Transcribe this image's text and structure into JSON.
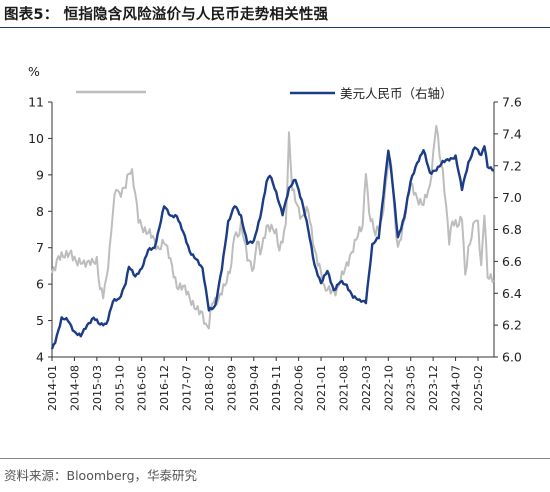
{
  "figure": {
    "title": "图表5：  恒指隐含风险溢价与人民币走势相关性强",
    "source": "资料来源：Bloomberg，华泰研究"
  },
  "chart_data": {
    "type": "line",
    "left_axis": {
      "unit_label": "%",
      "range": [
        4,
        11
      ],
      "ticks": [
        "4",
        "5",
        "6",
        "7",
        "8",
        "9",
        "10",
        "11"
      ]
    },
    "right_axis": {
      "range": [
        6.0,
        7.6
      ],
      "ticks": [
        "6.0",
        "6.2",
        "6.4",
        "6.6",
        "6.8",
        "7.0",
        "7.2",
        "7.4",
        "7.6"
      ]
    },
    "x_range": [
      "2014-01",
      "2025-07"
    ],
    "x_ticks": [
      "2014-01",
      "2014-08",
      "2015-03",
      "2015-10",
      "2016-05",
      "2016-12",
      "2017-07",
      "2018-02",
      "2018-09",
      "2019-04",
      "2019-11",
      "2020-06",
      "2021-01",
      "2021-08",
      "2022-03",
      "2022-10",
      "2023-05",
      "2023-12",
      "2024-07",
      "2025-02"
    ],
    "grid": false,
    "legend_position": "top",
    "series": [
      {
        "name": "",
        "axis": "left",
        "color": "#bdbdbd",
        "points": [
          [
            "2014-01",
            6.3
          ],
          [
            "2014-03",
            6.8
          ],
          [
            "2014-05",
            6.7
          ],
          [
            "2014-07",
            6.9
          ],
          [
            "2014-09",
            6.6
          ],
          [
            "2014-11",
            6.5
          ],
          [
            "2015-01",
            6.7
          ],
          [
            "2015-03",
            6.6
          ],
          [
            "2015-04",
            5.8
          ],
          [
            "2015-05",
            5.7
          ],
          [
            "2015-06",
            6.2
          ],
          [
            "2015-07",
            7.0
          ],
          [
            "2015-08",
            8.0
          ],
          [
            "2015-09",
            8.6
          ],
          [
            "2015-10",
            8.4
          ],
          [
            "2015-12",
            8.8
          ],
          [
            "2016-01",
            9.1
          ],
          [
            "2016-02",
            9.0
          ],
          [
            "2016-04",
            7.8
          ],
          [
            "2016-06",
            7.5
          ],
          [
            "2016-08",
            7.3
          ],
          [
            "2016-10",
            7.0
          ],
          [
            "2016-12",
            7.2
          ],
          [
            "2017-02",
            6.6
          ],
          [
            "2017-04",
            6.0
          ],
          [
            "2017-06",
            5.9
          ],
          [
            "2017-08",
            5.6
          ],
          [
            "2017-10",
            5.4
          ],
          [
            "2017-12",
            5.1
          ],
          [
            "2018-01",
            4.8
          ],
          [
            "2018-02",
            4.9
          ],
          [
            "2018-03",
            5.6
          ],
          [
            "2018-05",
            5.5
          ],
          [
            "2018-07",
            6.0
          ],
          [
            "2018-09",
            6.6
          ],
          [
            "2018-10",
            7.4
          ],
          [
            "2018-11",
            7.2
          ],
          [
            "2018-12",
            7.6
          ],
          [
            "2019-01",
            7.3
          ],
          [
            "2019-02",
            6.8
          ],
          [
            "2019-04",
            6.3
          ],
          [
            "2019-05",
            7.2
          ],
          [
            "2019-06",
            6.9
          ],
          [
            "2019-08",
            7.6
          ],
          [
            "2019-09",
            7.5
          ],
          [
            "2019-11",
            7.4
          ],
          [
            "2019-12",
            7.0
          ],
          [
            "2020-01",
            7.3
          ],
          [
            "2020-02",
            7.6
          ],
          [
            "2020-03",
            10.0
          ],
          [
            "2020-04",
            8.6
          ],
          [
            "2020-05",
            8.4
          ],
          [
            "2020-07",
            7.8
          ],
          [
            "2020-09",
            8.0
          ],
          [
            "2020-11",
            7.0
          ],
          [
            "2021-01",
            6.3
          ],
          [
            "2021-02",
            5.8
          ],
          [
            "2021-04",
            5.9
          ],
          [
            "2021-06",
            5.8
          ],
          [
            "2021-08",
            6.3
          ],
          [
            "2021-10",
            6.8
          ],
          [
            "2021-12",
            7.2
          ],
          [
            "2022-02",
            7.6
          ],
          [
            "2022-03",
            9.2
          ],
          [
            "2022-04",
            8.0
          ],
          [
            "2022-06",
            7.3
          ],
          [
            "2022-08",
            7.8
          ],
          [
            "2022-10",
            9.4
          ],
          [
            "2022-11",
            9.2
          ],
          [
            "2022-12",
            7.8
          ],
          [
            "2023-01",
            7.0
          ],
          [
            "2023-03",
            7.8
          ],
          [
            "2023-05",
            8.7
          ],
          [
            "2023-07",
            8.4
          ],
          [
            "2023-09",
            8.2
          ],
          [
            "2023-11",
            8.6
          ],
          [
            "2024-01",
            10.5
          ],
          [
            "2024-02",
            9.6
          ],
          [
            "2024-03",
            9.0
          ],
          [
            "2024-05",
            7.2
          ],
          [
            "2024-06",
            7.8
          ],
          [
            "2024-08",
            7.6
          ],
          [
            "2024-09",
            7.8
          ],
          [
            "2024-10",
            6.2
          ],
          [
            "2024-11",
            7.0
          ],
          [
            "2025-01",
            7.8
          ],
          [
            "2025-02",
            7.6
          ],
          [
            "2025-03",
            6.4
          ],
          [
            "2025-04",
            8.0
          ],
          [
            "2025-05",
            6.3
          ],
          [
            "2025-07",
            6.1
          ]
        ]
      },
      {
        "name": "美元人民币（右轴）",
        "axis": "right",
        "color": "#1b3c87",
        "points": [
          [
            "2014-01",
            6.05
          ],
          [
            "2014-02",
            6.1
          ],
          [
            "2014-04",
            6.24
          ],
          [
            "2014-06",
            6.23
          ],
          [
            "2014-08",
            6.16
          ],
          [
            "2014-10",
            6.13
          ],
          [
            "2014-12",
            6.2
          ],
          [
            "2015-02",
            6.25
          ],
          [
            "2015-04",
            6.2
          ],
          [
            "2015-06",
            6.21
          ],
          [
            "2015-08",
            6.35
          ],
          [
            "2015-10",
            6.36
          ],
          [
            "2015-12",
            6.47
          ],
          [
            "2016-01",
            6.57
          ],
          [
            "2016-03",
            6.5
          ],
          [
            "2016-05",
            6.56
          ],
          [
            "2016-07",
            6.67
          ],
          [
            "2016-09",
            6.68
          ],
          [
            "2016-11",
            6.86
          ],
          [
            "2016-12",
            6.95
          ],
          [
            "2017-02",
            6.88
          ],
          [
            "2017-04",
            6.89
          ],
          [
            "2017-06",
            6.78
          ],
          [
            "2017-08",
            6.66
          ],
          [
            "2017-10",
            6.62
          ],
          [
            "2017-12",
            6.55
          ],
          [
            "2018-02",
            6.3
          ],
          [
            "2018-04",
            6.32
          ],
          [
            "2018-06",
            6.55
          ],
          [
            "2018-08",
            6.85
          ],
          [
            "2018-10",
            6.95
          ],
          [
            "2018-12",
            6.88
          ],
          [
            "2019-02",
            6.72
          ],
          [
            "2019-04",
            6.72
          ],
          [
            "2019-06",
            6.88
          ],
          [
            "2019-08",
            7.1
          ],
          [
            "2019-09",
            7.14
          ],
          [
            "2019-11",
            7.03
          ],
          [
            "2020-01",
            6.9
          ],
          [
            "2020-03",
            7.05
          ],
          [
            "2020-05",
            7.12
          ],
          [
            "2020-07",
            6.98
          ],
          [
            "2020-09",
            6.8
          ],
          [
            "2020-11",
            6.58
          ],
          [
            "2021-01",
            6.46
          ],
          [
            "2021-03",
            6.54
          ],
          [
            "2021-05",
            6.42
          ],
          [
            "2021-07",
            6.47
          ],
          [
            "2021-09",
            6.45
          ],
          [
            "2021-11",
            6.38
          ],
          [
            "2022-01",
            6.35
          ],
          [
            "2022-03",
            6.35
          ],
          [
            "2022-05",
            6.7
          ],
          [
            "2022-07",
            6.75
          ],
          [
            "2022-09",
            7.12
          ],
          [
            "2022-10",
            7.3
          ],
          [
            "2022-11",
            7.15
          ],
          [
            "2022-12",
            6.95
          ],
          [
            "2023-01",
            6.75
          ],
          [
            "2023-03",
            6.88
          ],
          [
            "2023-05",
            7.1
          ],
          [
            "2023-07",
            7.22
          ],
          [
            "2023-09",
            7.3
          ],
          [
            "2023-11",
            7.15
          ],
          [
            "2024-01",
            7.18
          ],
          [
            "2024-03",
            7.22
          ],
          [
            "2024-05",
            7.24
          ],
          [
            "2024-07",
            7.26
          ],
          [
            "2024-09",
            7.05
          ],
          [
            "2024-11",
            7.22
          ],
          [
            "2025-01",
            7.32
          ],
          [
            "2025-03",
            7.26
          ],
          [
            "2025-04",
            7.33
          ],
          [
            "2025-05",
            7.2
          ],
          [
            "2025-07",
            7.17
          ]
        ]
      }
    ]
  }
}
